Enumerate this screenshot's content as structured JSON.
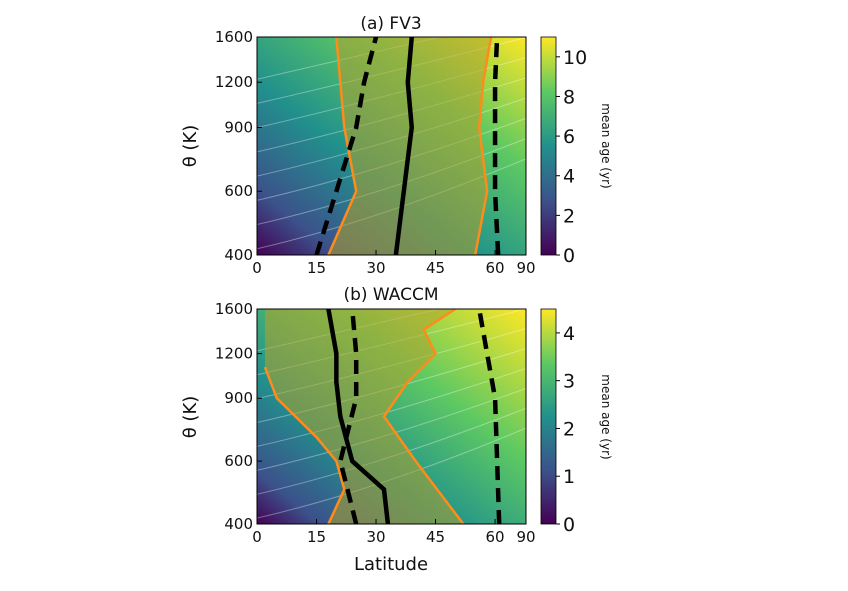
{
  "figure": {
    "xlabel": "Latitude",
    "ylabel": "θ (K)"
  },
  "chart_data": [
    {
      "type": "heatmap",
      "title": "(a) FV3",
      "xlabel": "",
      "ylabel": "θ (K)",
      "x_ticks": [
        "0",
        "15",
        "30",
        "45",
        "60",
        "90"
      ],
      "y_ticks": [
        "400",
        "600",
        "900",
        "1200",
        "1600"
      ],
      "y_scale": "log",
      "xlim": [
        0,
        90
      ],
      "ylim": [
        400,
        1600
      ],
      "colorbar": {
        "label": "mean age (yr)",
        "ticks": [
          "0",
          "2",
          "4",
          "6",
          "8",
          "10"
        ],
        "range": [
          0,
          11
        ]
      },
      "colormap": [
        "#440154",
        "#3b528b",
        "#21918c",
        "#5ec962",
        "#fde725"
      ],
      "boundaries": {
        "solid_black": [
          [
            400,
            35
          ],
          [
            600,
            37
          ],
          [
            900,
            39
          ],
          [
            1200,
            38
          ],
          [
            1600,
            39
          ]
        ],
        "dashed_black_left": [
          [
            400,
            15
          ],
          [
            600,
            20
          ],
          [
            900,
            25
          ],
          [
            1200,
            27
          ],
          [
            1600,
            30
          ]
        ],
        "dashed_black_right": [
          [
            400,
            63
          ],
          [
            600,
            60
          ],
          [
            900,
            60
          ],
          [
            1200,
            60
          ],
          [
            1600,
            62
          ]
        ],
        "orange_left": [
          [
            400,
            18
          ],
          [
            600,
            25
          ],
          [
            900,
            22
          ],
          [
            1200,
            21
          ],
          [
            1600,
            20
          ]
        ],
        "orange_right": [
          [
            400,
            55
          ],
          [
            600,
            58
          ],
          [
            900,
            56
          ],
          [
            1200,
            57
          ],
          [
            1600,
            59
          ]
        ]
      }
    },
    {
      "type": "heatmap",
      "title": "(b) WACCM",
      "xlabel": "Latitude",
      "ylabel": "θ (K)",
      "x_ticks": [
        "0",
        "15",
        "30",
        "45",
        "60",
        "90"
      ],
      "y_ticks": [
        "400",
        "600",
        "900",
        "1200",
        "1600"
      ],
      "y_scale": "log",
      "xlim": [
        0,
        90
      ],
      "ylim": [
        400,
        1600
      ],
      "colorbar": {
        "label": "mean age (yr)",
        "ticks": [
          "0",
          "1",
          "2",
          "3",
          "4"
        ],
        "range": [
          0,
          4.5
        ]
      },
      "colormap": [
        "#440154",
        "#3b528b",
        "#21918c",
        "#5ec962",
        "#fde725"
      ],
      "boundaries": {
        "solid_black": [
          [
            400,
            33
          ],
          [
            500,
            32
          ],
          [
            600,
            24
          ],
          [
            800,
            21
          ],
          [
            1000,
            20
          ],
          [
            1200,
            20
          ],
          [
            1600,
            18
          ]
        ],
        "dashed_black_left": [
          [
            400,
            25
          ],
          [
            600,
            21
          ],
          [
            900,
            25
          ],
          [
            1200,
            25
          ],
          [
            1600,
            24
          ]
        ],
        "dashed_black_right": [
          [
            400,
            64
          ],
          [
            600,
            62
          ],
          [
            900,
            60
          ],
          [
            1200,
            58
          ],
          [
            1600,
            56
          ]
        ],
        "orange_left": [
          [
            400,
            18
          ],
          [
            500,
            22
          ],
          [
            600,
            20
          ],
          [
            700,
            15
          ],
          [
            900,
            5
          ],
          [
            1100,
            2
          ]
        ],
        "orange_right": [
          [
            400,
            52
          ],
          [
            600,
            40
          ],
          [
            800,
            32
          ],
          [
            1000,
            38
          ],
          [
            1200,
            45
          ],
          [
            1400,
            42
          ],
          [
            1600,
            50
          ]
        ]
      }
    }
  ]
}
